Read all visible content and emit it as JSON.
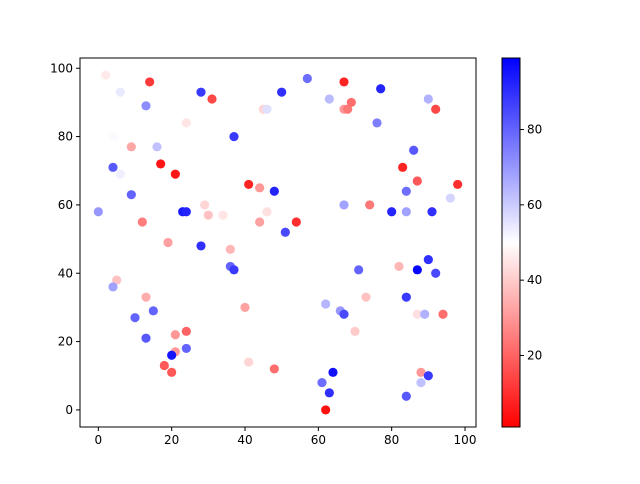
{
  "chart_data": {
    "type": "scatter",
    "title": "",
    "xlabel": "",
    "ylabel": "",
    "xlim": [
      -5,
      103
    ],
    "ylim": [
      -5,
      103
    ],
    "xticks": [
      0,
      20,
      40,
      60,
      80,
      100
    ],
    "yticks": [
      0,
      20,
      40,
      60,
      80,
      100
    ],
    "grid": false,
    "colormap": "bwr_r",
    "colormap_stops": [
      "#ff0000",
      "#ffffff",
      "#0000ff"
    ],
    "colorbar": {
      "range": [
        1,
        99
      ],
      "ticks": [
        20,
        40,
        60,
        80
      ]
    },
    "points": [
      {
        "x": 2,
        "y": 98,
        "c": 46
      },
      {
        "x": 14,
        "y": 96,
        "c": 12
      },
      {
        "x": 6,
        "y": 93,
        "c": 54
      },
      {
        "x": 13,
        "y": 89,
        "c": 72
      },
      {
        "x": 28,
        "y": 93,
        "c": 88
      },
      {
        "x": 31,
        "y": 91,
        "c": 15
      },
      {
        "x": 24,
        "y": 84,
        "c": 45
      },
      {
        "x": 37,
        "y": 80,
        "c": 88
      },
      {
        "x": 4,
        "y": 80,
        "c": 51
      },
      {
        "x": 45,
        "y": 88,
        "c": 42
      },
      {
        "x": 46,
        "y": 88,
        "c": 56
      },
      {
        "x": 50,
        "y": 93,
        "c": 90
      },
      {
        "x": 57,
        "y": 97,
        "c": 78
      },
      {
        "x": 63,
        "y": 91,
        "c": 63
      },
      {
        "x": 67,
        "y": 96,
        "c": 8
      },
      {
        "x": 67,
        "y": 88,
        "c": 30
      },
      {
        "x": 68,
        "y": 88,
        "c": 24
      },
      {
        "x": 69,
        "y": 90,
        "c": 22
      },
      {
        "x": 77,
        "y": 94,
        "c": 92
      },
      {
        "x": 76,
        "y": 84,
        "c": 75
      },
      {
        "x": 90,
        "y": 91,
        "c": 65
      },
      {
        "x": 92,
        "y": 88,
        "c": 15
      },
      {
        "x": 9,
        "y": 77,
        "c": 33
      },
      {
        "x": 17,
        "y": 72,
        "c": 5
      },
      {
        "x": 16,
        "y": 77,
        "c": 62
      },
      {
        "x": 4,
        "y": 71,
        "c": 82
      },
      {
        "x": 6,
        "y": 69,
        "c": 53
      },
      {
        "x": 21,
        "y": 69,
        "c": 5
      },
      {
        "x": 9,
        "y": 63,
        "c": 80
      },
      {
        "x": 0,
        "y": 58,
        "c": 70
      },
      {
        "x": 12,
        "y": 55,
        "c": 25
      },
      {
        "x": 23,
        "y": 58,
        "c": 94
      },
      {
        "x": 24,
        "y": 58,
        "c": 92
      },
      {
        "x": 29,
        "y": 60,
        "c": 42
      },
      {
        "x": 30,
        "y": 57,
        "c": 38
      },
      {
        "x": 34,
        "y": 57,
        "c": 45
      },
      {
        "x": 41,
        "y": 66,
        "c": 8
      },
      {
        "x": 44,
        "y": 65,
        "c": 30
      },
      {
        "x": 46,
        "y": 58,
        "c": 44
      },
      {
        "x": 48,
        "y": 64,
        "c": 92
      },
      {
        "x": 44,
        "y": 55,
        "c": 32
      },
      {
        "x": 54,
        "y": 55,
        "c": 10
      },
      {
        "x": 51,
        "y": 52,
        "c": 85
      },
      {
        "x": 67,
        "y": 60,
        "c": 68
      },
      {
        "x": 74,
        "y": 60,
        "c": 24
      },
      {
        "x": 80,
        "y": 58,
        "c": 92
      },
      {
        "x": 84,
        "y": 58,
        "c": 68
      },
      {
        "x": 83,
        "y": 71,
        "c": 8
      },
      {
        "x": 86,
        "y": 76,
        "c": 82
      },
      {
        "x": 87,
        "y": 67,
        "c": 18
      },
      {
        "x": 84,
        "y": 64,
        "c": 78
      },
      {
        "x": 91,
        "y": 58,
        "c": 90
      },
      {
        "x": 96,
        "y": 62,
        "c": 58
      },
      {
        "x": 98,
        "y": 66,
        "c": 10
      },
      {
        "x": 19,
        "y": 49,
        "c": 32
      },
      {
        "x": 28,
        "y": 48,
        "c": 90
      },
      {
        "x": 36,
        "y": 47,
        "c": 36
      },
      {
        "x": 36,
        "y": 42,
        "c": 80
      },
      {
        "x": 37,
        "y": 41,
        "c": 88
      },
      {
        "x": 5,
        "y": 38,
        "c": 38
      },
      {
        "x": 4,
        "y": 36,
        "c": 68
      },
      {
        "x": 13,
        "y": 33,
        "c": 34
      },
      {
        "x": 10,
        "y": 27,
        "c": 80
      },
      {
        "x": 15,
        "y": 29,
        "c": 80
      },
      {
        "x": 13,
        "y": 21,
        "c": 82
      },
      {
        "x": 21,
        "y": 22,
        "c": 30
      },
      {
        "x": 24,
        "y": 23,
        "c": 20
      },
      {
        "x": 21,
        "y": 17,
        "c": 30
      },
      {
        "x": 24,
        "y": 18,
        "c": 80
      },
      {
        "x": 20,
        "y": 16,
        "c": 95
      },
      {
        "x": 18,
        "y": 13,
        "c": 18
      },
      {
        "x": 20,
        "y": 11,
        "c": 18
      },
      {
        "x": 40,
        "y": 30,
        "c": 32
      },
      {
        "x": 41,
        "y": 14,
        "c": 42
      },
      {
        "x": 48,
        "y": 12,
        "c": 22
      },
      {
        "x": 71,
        "y": 41,
        "c": 80
      },
      {
        "x": 62,
        "y": 31,
        "c": 64
      },
      {
        "x": 66,
        "y": 29,
        "c": 70
      },
      {
        "x": 67,
        "y": 28,
        "c": 85
      },
      {
        "x": 70,
        "y": 23,
        "c": 40
      },
      {
        "x": 73,
        "y": 33,
        "c": 38
      },
      {
        "x": 61,
        "y": 8,
        "c": 78
      },
      {
        "x": 64,
        "y": 11,
        "c": 96
      },
      {
        "x": 63,
        "y": 5,
        "c": 90
      },
      {
        "x": 62,
        "y": 0,
        "c": 4
      },
      {
        "x": 82,
        "y": 42,
        "c": 36
      },
      {
        "x": 87,
        "y": 41,
        "c": 98
      },
      {
        "x": 90,
        "y": 44,
        "c": 90
      },
      {
        "x": 92,
        "y": 40,
        "c": 85
      },
      {
        "x": 84,
        "y": 33,
        "c": 88
      },
      {
        "x": 87,
        "y": 28,
        "c": 44
      },
      {
        "x": 89,
        "y": 28,
        "c": 65
      },
      {
        "x": 94,
        "y": 28,
        "c": 22
      },
      {
        "x": 88,
        "y": 11,
        "c": 30
      },
      {
        "x": 90,
        "y": 10,
        "c": 88
      },
      {
        "x": 88,
        "y": 8,
        "c": 62
      },
      {
        "x": 84,
        "y": 4,
        "c": 82
      }
    ]
  }
}
